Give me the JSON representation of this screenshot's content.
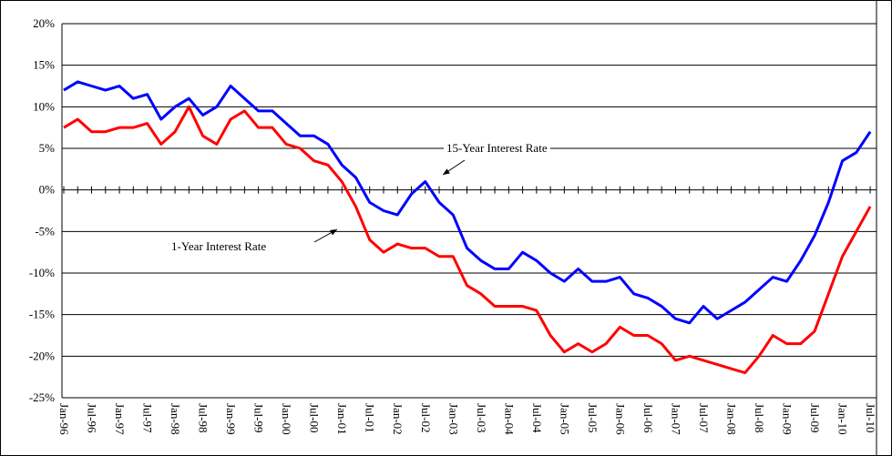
{
  "chart_data": {
    "type": "line",
    "categories": [
      "Jan-96",
      null,
      "Jul-96",
      null,
      "Jan-97",
      null,
      "Jul-97",
      null,
      "Jan-98",
      null,
      "Jul-98",
      null,
      "Jan-99",
      null,
      "Jul-99",
      null,
      "Jan-00",
      null,
      "Jul-00",
      null,
      "Jan-01",
      null,
      "Jul-01",
      null,
      "Jan-02",
      null,
      "Jul-02",
      null,
      "Jan-03",
      null,
      "Jul-03",
      null,
      "Jan-04",
      null,
      "Jul-04",
      null,
      "Jan-05",
      null,
      "Jul-05",
      null,
      "Jan-06",
      null,
      "Jul-06",
      null,
      "Jan-07",
      null,
      "Jul-07",
      null,
      "Jan-08",
      null,
      "Jul-08",
      null,
      "Jan-09",
      null,
      "Jul-09",
      null,
      "Jan-10",
      null,
      "Jul-10"
    ],
    "series": [
      {
        "name": "15-Year Interest Rate",
        "color": "#0000ff",
        "values": [
          12,
          13,
          12.5,
          12,
          12.5,
          11,
          11.5,
          8.5,
          10,
          11,
          9,
          10,
          12.5,
          11,
          9.5,
          9.5,
          8,
          6.5,
          6.5,
          5.5,
          3,
          1.5,
          -1.5,
          -2.5,
          -3,
          -0.5,
          1,
          -1.5,
          -3,
          -7,
          -8.5,
          -9.5,
          -9.5,
          -7.5,
          -8.5,
          -10,
          -11,
          -9.5,
          -11,
          -11,
          -10.5,
          -12.5,
          -13,
          -14,
          -15.5,
          -16,
          -14,
          -15.5,
          -14.5,
          -13.5,
          -12,
          -10.5,
          -11,
          -8.5,
          -5.5,
          -1.5,
          3.5,
          4.5,
          7
        ]
      },
      {
        "name": "1-Year Interest Rate",
        "color": "#ff0000",
        "values": [
          7.5,
          8.5,
          7,
          7,
          7.5,
          7.5,
          8,
          5.5,
          7,
          10,
          6.5,
          5.5,
          8.5,
          9.5,
          7.5,
          7.5,
          5.5,
          5,
          3.5,
          3,
          1,
          -2,
          -6,
          -7.5,
          -6.5,
          -7,
          -7,
          -8,
          -8,
          -11.5,
          -12.5,
          -14,
          -14,
          -14,
          -14.5,
          -17.5,
          -19.5,
          -18.5,
          -19.5,
          -18.5,
          -16.5,
          -17.5,
          -17.5,
          -18.5,
          -20.5,
          -20,
          -20.5,
          -21,
          -21.5,
          -22,
          -20,
          -17.5,
          -18.5,
          -18.5,
          -17,
          -12.5,
          -8,
          -5,
          -2
        ]
      }
    ],
    "ylim": [
      -25,
      20
    ],
    "yticks": [
      {
        "value": -25,
        "label": "-25%"
      },
      {
        "value": -20,
        "label": "-20%"
      },
      {
        "value": -15,
        "label": "-15%"
      },
      {
        "value": -10,
        "label": "-10%"
      },
      {
        "value": -5,
        "label": "-5%"
      },
      {
        "value": 0,
        "label": "0%"
      },
      {
        "value": 5,
        "label": "5%"
      },
      {
        "value": 10,
        "label": "10%"
      },
      {
        "value": 15,
        "label": "15%"
      },
      {
        "value": 20,
        "label": "20%"
      }
    ],
    "grid": true
  }
}
